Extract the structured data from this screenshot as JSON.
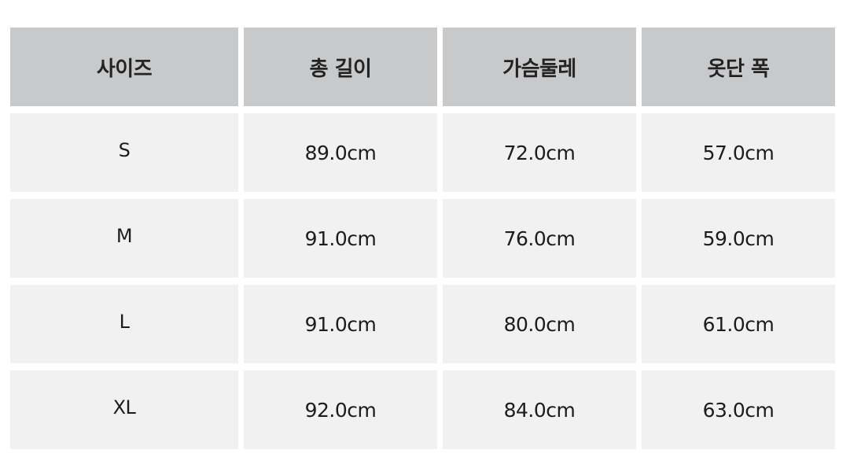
{
  "table": {
    "headers": [
      "사이즈",
      "총 길이",
      "가슴둘레",
      "옷단 폭"
    ],
    "rows": [
      {
        "size": "S",
        "length": "89.0cm",
        "chest": "72.0cm",
        "hem": "57.0cm"
      },
      {
        "size": "M",
        "length": "91.0cm",
        "chest": "76.0cm",
        "hem": "59.0cm"
      },
      {
        "size": "L",
        "length": "91.0cm",
        "chest": "80.0cm",
        "hem": "61.0cm"
      },
      {
        "size": "XL",
        "length": "92.0cm",
        "chest": "84.0cm",
        "hem": "63.0cm"
      }
    ]
  },
  "colors": {
    "header_bg": "#c8c9cb",
    "cell_bg": "#f1f1f1",
    "text": "#1c1c1c"
  }
}
